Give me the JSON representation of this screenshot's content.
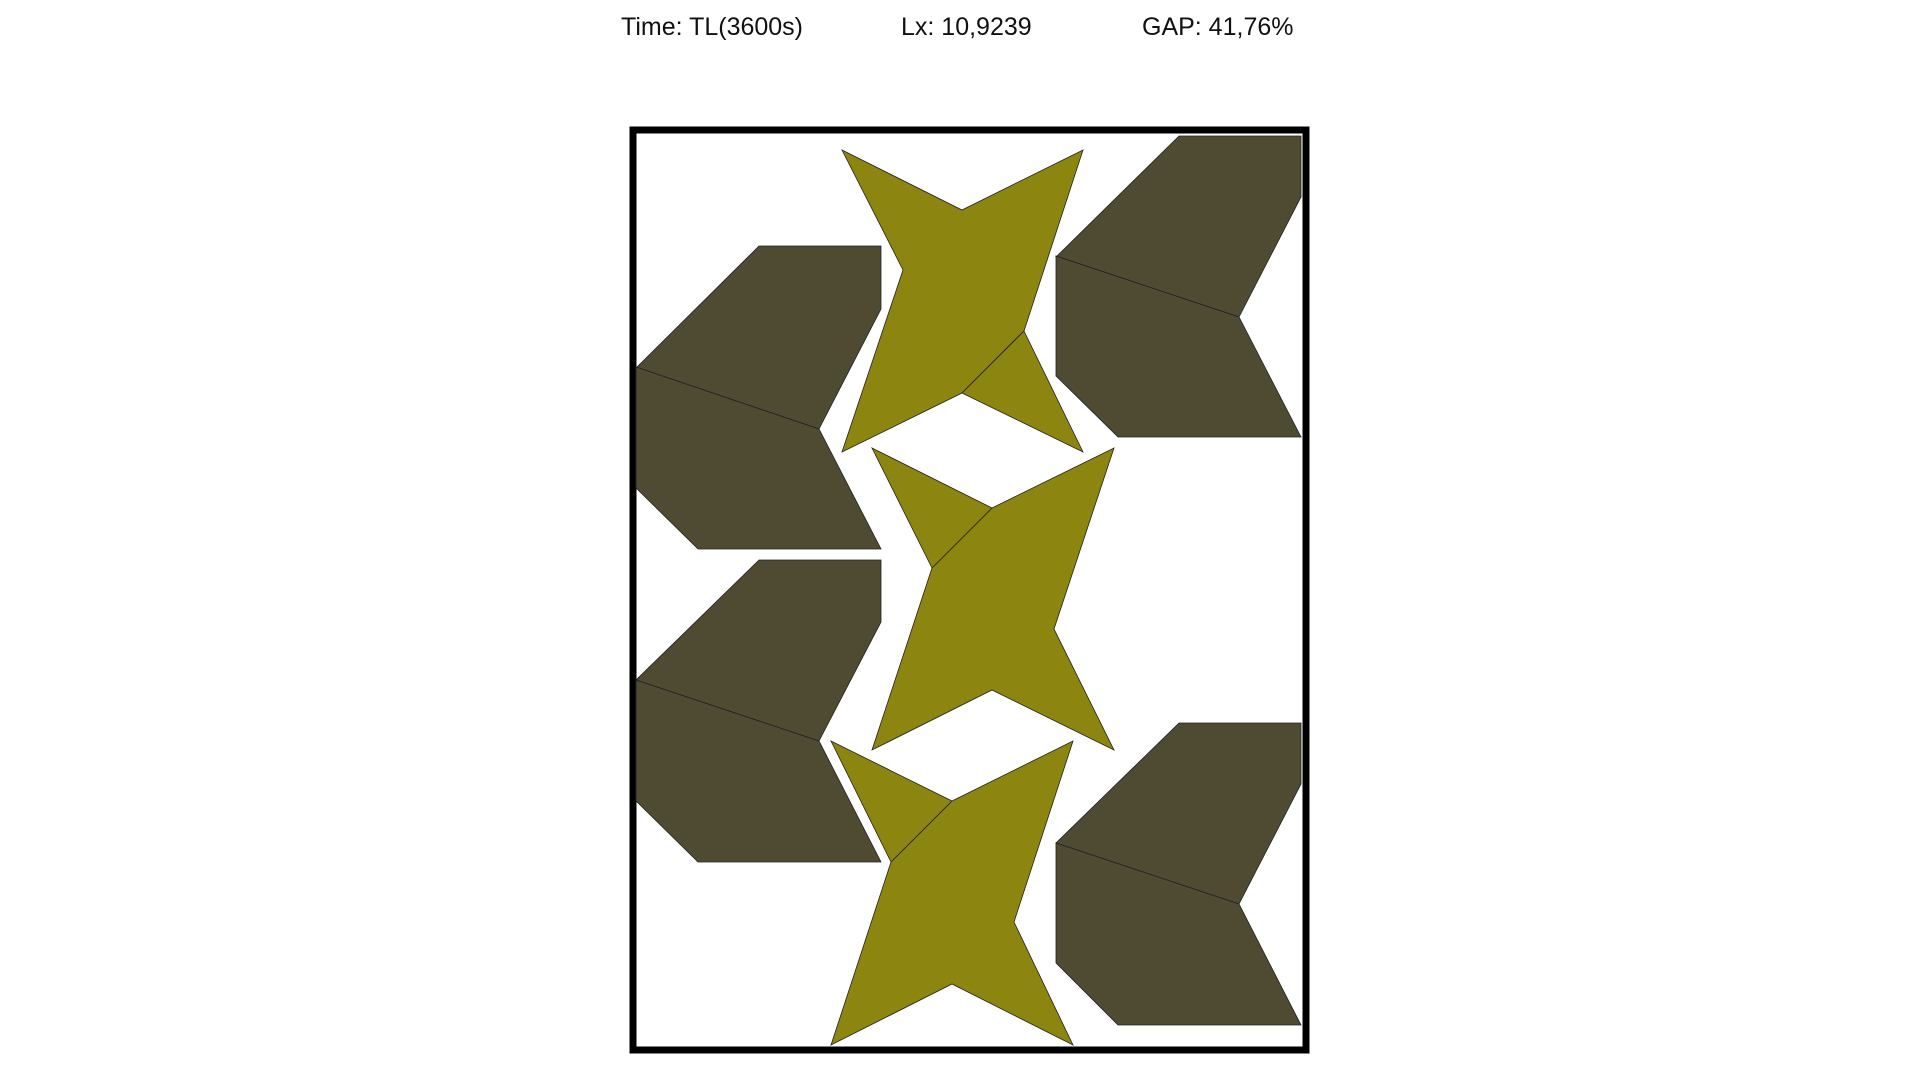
{
  "header": {
    "time_text": "Time: TL(3600s)",
    "lx_text": "Lx: 10,9239",
    "gap_text": "GAP: 41,76%"
  },
  "colors": {
    "background": "#ffffff",
    "container_border": "#000000",
    "star_fill": "#8c8510",
    "chevron_fill": "#4f4a32",
    "edge_stroke": "#222222"
  },
  "pieces": {
    "stars": [
      "star",
      "star",
      "star"
    ],
    "chevrons": [
      "chevron",
      "chevron",
      "chevron",
      "chevron"
    ]
  }
}
